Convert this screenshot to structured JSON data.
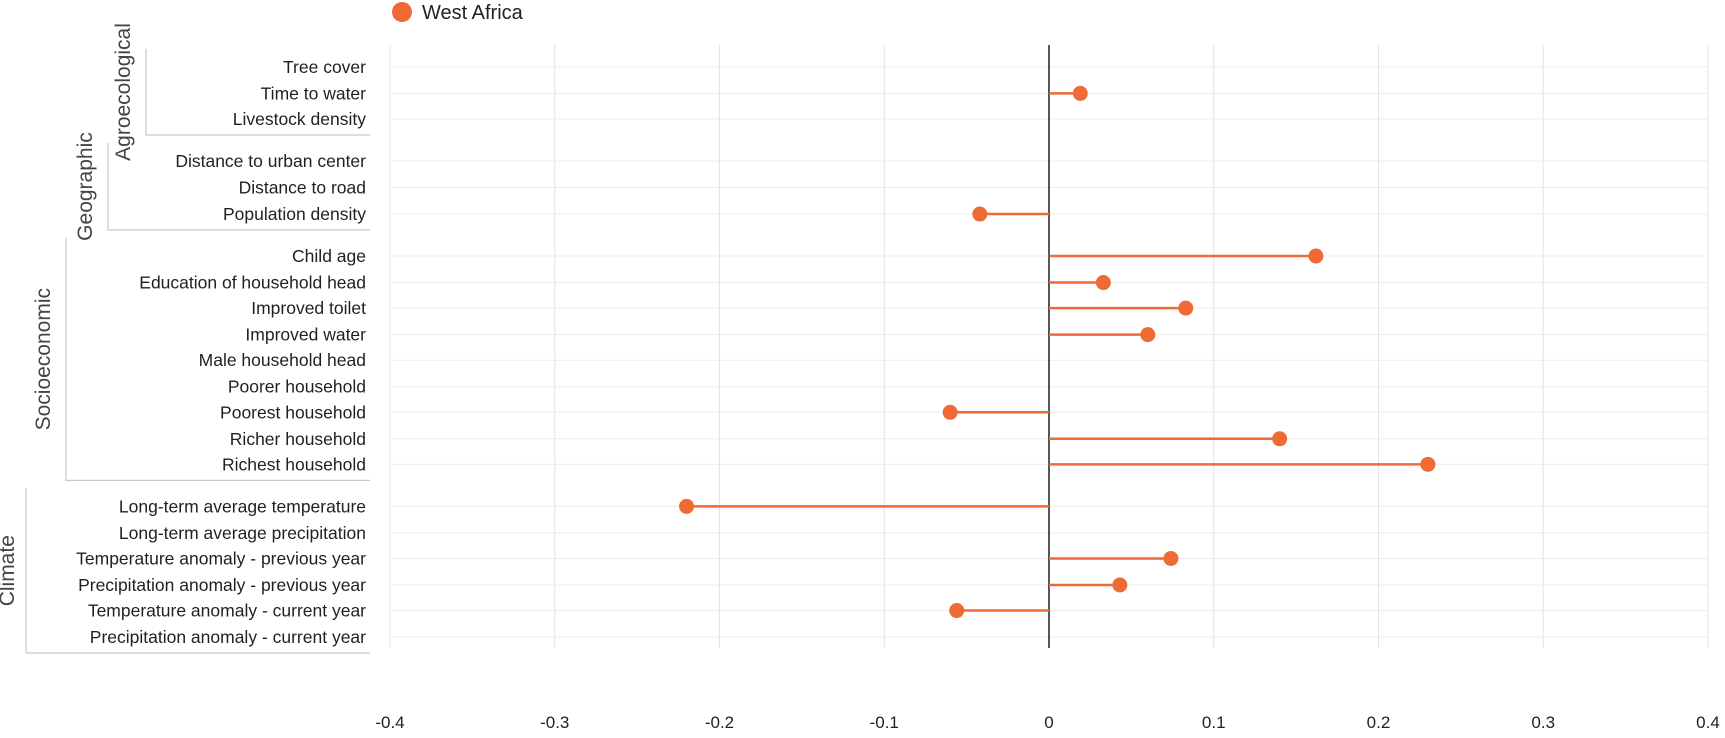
{
  "chart_data": {
    "type": "lollipop",
    "series_name": "West Africa",
    "color": "#ef6a35",
    "x_ticks": [
      -0.4,
      -0.3,
      -0.2,
      -0.1,
      0,
      0.1,
      0.2,
      0.3,
      0.4
    ],
    "x_tick_labels": [
      "-0.4",
      "-0.3",
      "-0.2",
      "-0.1",
      "0",
      "0.1",
      "0.2",
      "0.3",
      "0.4"
    ],
    "xlim": [
      -0.4,
      0.4
    ],
    "grid": true,
    "legend_position": "top",
    "groups": [
      {
        "name": "Agroecological",
        "items": [
          {
            "label": "Tree cover",
            "value": null
          },
          {
            "label": "Time to water",
            "value": 0.019
          },
          {
            "label": "Livestock density",
            "value": null
          }
        ]
      },
      {
        "name": "Geographic",
        "items": [
          {
            "label": "Distance to urban center",
            "value": null
          },
          {
            "label": "Distance to road",
            "value": null
          },
          {
            "label": "Population density",
            "value": -0.042
          }
        ]
      },
      {
        "name": "Socioeconomic",
        "items": [
          {
            "label": "Child age",
            "value": 0.162
          },
          {
            "label": "Education of household head",
            "value": 0.033
          },
          {
            "label": "Improved toilet",
            "value": 0.083
          },
          {
            "label": "Improved water",
            "value": 0.06
          },
          {
            "label": "Male household head",
            "value": null
          },
          {
            "label": "Poorer household",
            "value": null
          },
          {
            "label": "Poorest household",
            "value": -0.06
          },
          {
            "label": "Richer household",
            "value": 0.14
          },
          {
            "label": "Richest household",
            "value": 0.23
          }
        ]
      },
      {
        "name": "Climate",
        "items": [
          {
            "label": "Long-term average temperature",
            "value": -0.22
          },
          {
            "label": "Long-term average precipitation",
            "value": null
          },
          {
            "label": "Temperature anomaly - previous year",
            "value": 0.074
          },
          {
            "label": "Precipitation anomaly - previous year",
            "value": 0.043
          },
          {
            "label": "Temperature anomaly - current year",
            "value": -0.056
          },
          {
            "label": "Precipitation anomaly - current year",
            "value": null
          }
        ]
      }
    ]
  }
}
